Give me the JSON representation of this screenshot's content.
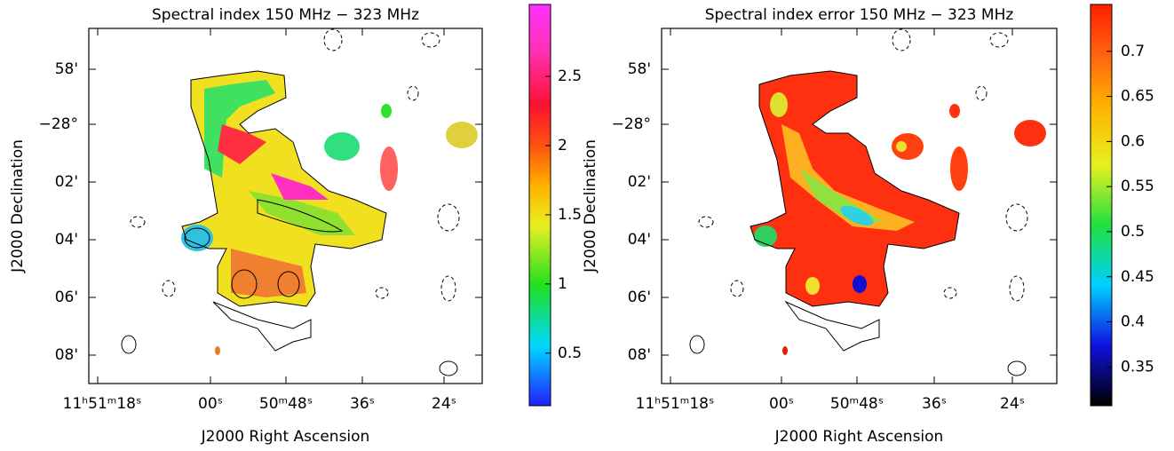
{
  "panels": [
    {
      "title": "Spectral index 150 MHz − 323 MHz",
      "x_label": "J2000 Right Ascension",
      "y_label": "J2000 Declination",
      "x_tick_labels": [
        "11ʰ51ᵐ18ˢ",
        "00ˢ",
        "50ᵐ48ˢ",
        "36ˢ",
        "24ˢ"
      ],
      "y_tick_labels": [
        "58'",
        "−28°",
        "02'",
        "04'",
        "06'",
        "08'"
      ],
      "colorbar": {
        "range": [
          0.12,
          3.02
        ],
        "ticks": [
          0.5,
          1,
          1.5,
          2,
          2.5
        ]
      }
    },
    {
      "title": "Spectral index error 150 MHz − 323 MHz",
      "x_label": "J2000 Right Ascension",
      "y_label": "J2000 Declination",
      "x_tick_labels": [
        "11ʰ51ᵐ18ˢ",
        "00ˢ",
        "50ᵐ48ˢ",
        "36ˢ",
        "24ˢ"
      ],
      "y_tick_labels": [
        "58'",
        "−28°",
        "02'",
        "04'",
        "06'",
        "08'"
      ],
      "colorbar": {
        "range": [
          0.307,
          0.752
        ],
        "ticks": [
          0.35,
          0.4,
          0.45,
          0.5,
          0.55,
          0.6,
          0.65,
          0.7
        ]
      }
    }
  ]
}
